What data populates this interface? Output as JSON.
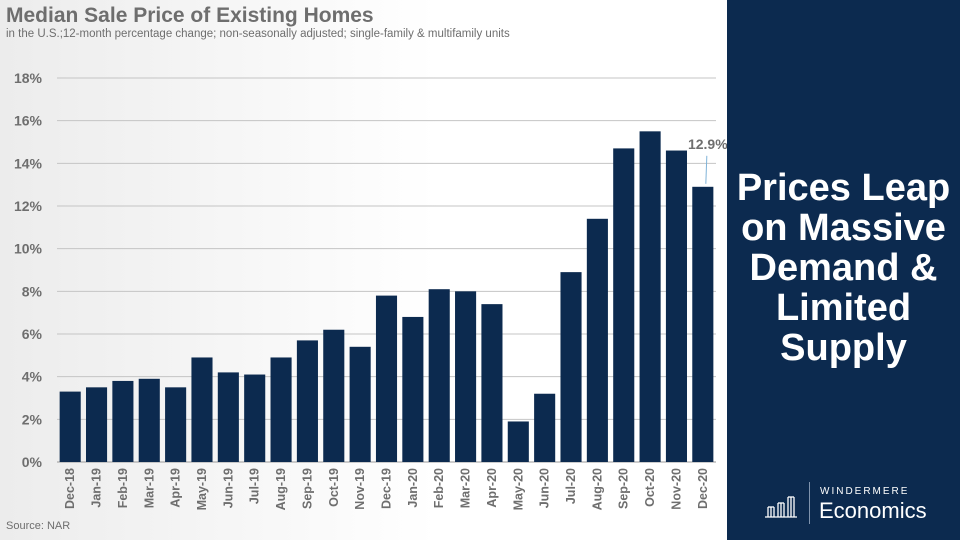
{
  "slide": {
    "source": "Source: NAR"
  },
  "headline": {
    "lines": [
      "Prices Leap",
      "on Massive",
      "Demand &",
      "Limited",
      "Supply"
    ]
  },
  "logo": {
    "brand": "WINDERMERE",
    "product": "Economics"
  },
  "colors": {
    "bar": "#0c2a4f",
    "panel": "#0c2a4f",
    "text_gray": "#6e6e6e",
    "annotation": "#7fb3d8"
  },
  "chart_data": {
    "type": "bar",
    "title": "Median Sale Price of Existing Homes",
    "subtitle": "in the U.S.;12-month percentage change; non-seasonally adjusted; single-family & multifamily units",
    "categories": [
      "Dec-18",
      "Jan-19",
      "Feb-19",
      "Mar-19",
      "Apr-19",
      "May-19",
      "Jun-19",
      "Jul-19",
      "Aug-19",
      "Sep-19",
      "Oct-19",
      "Nov-19",
      "Dec-19",
      "Jan-20",
      "Feb-20",
      "Mar-20",
      "Apr-20",
      "May-20",
      "Jun-20",
      "Jul-20",
      "Aug-20",
      "Sep-20",
      "Oct-20",
      "Nov-20",
      "Dec-20"
    ],
    "values": [
      3.3,
      3.5,
      3.8,
      3.9,
      3.5,
      4.9,
      4.2,
      4.1,
      4.9,
      5.7,
      6.2,
      5.4,
      7.8,
      6.8,
      8.1,
      8.0,
      7.4,
      1.9,
      3.2,
      8.9,
      11.4,
      14.7,
      15.5,
      14.6,
      12.9
    ],
    "ylim": [
      0,
      18
    ],
    "yticks": [
      0,
      2,
      4,
      6,
      8,
      10,
      12,
      14,
      16,
      18
    ],
    "ytick_labels": [
      "0%",
      "2%",
      "4%",
      "6%",
      "8%",
      "10%",
      "12%",
      "14%",
      "16%",
      "18%"
    ],
    "xlabel": "",
    "ylabel": "",
    "grid": true,
    "annotations": [
      {
        "category": "Dec-20",
        "text": "12.9%"
      }
    ]
  }
}
